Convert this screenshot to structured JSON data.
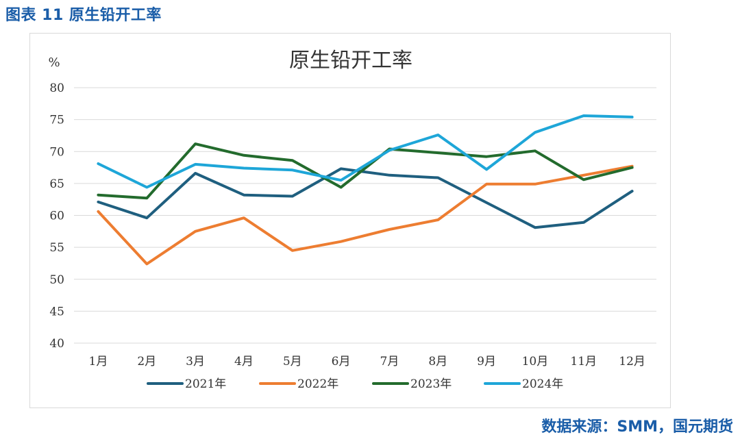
{
  "figure_caption": "图表 11 原生铅开工率",
  "source": "数据来源：SMM，国元期货",
  "chart_data": {
    "type": "line",
    "title": "原生铅开工率",
    "ylabel": "%",
    "xlabel": "",
    "ylim": [
      40,
      80
    ],
    "yticks": [
      40,
      45,
      50,
      55,
      60,
      65,
      70,
      75,
      80
    ],
    "categories": [
      "1月",
      "2月",
      "3月",
      "4月",
      "5月",
      "6月",
      "7月",
      "8月",
      "9月",
      "10月",
      "11月",
      "12月"
    ],
    "grid": true,
    "legend": "bottom",
    "series": [
      {
        "name": "2021年",
        "color": "#1f5f7f",
        "values": [
          62.1,
          59.6,
          66.6,
          63.2,
          63.0,
          67.3,
          66.3,
          65.9,
          62.0,
          58.1,
          58.9,
          63.8
        ]
      },
      {
        "name": "2022年",
        "color": "#ed7d31",
        "values": [
          60.6,
          52.4,
          57.5,
          59.6,
          54.5,
          55.9,
          57.8,
          59.3,
          64.9,
          64.9,
          66.3,
          67.7
        ]
      },
      {
        "name": "2023年",
        "color": "#236b2d",
        "values": [
          63.2,
          62.7,
          71.2,
          69.4,
          68.6,
          64.4,
          70.4,
          69.8,
          69.2,
          70.1,
          65.6,
          67.5
        ]
      },
      {
        "name": "2024年",
        "color": "#1ea6d8",
        "values": [
          68.1,
          64.4,
          68.0,
          67.4,
          67.1,
          65.5,
          70.2,
          72.6,
          67.2,
          73.0,
          75.6,
          75.4
        ]
      }
    ]
  }
}
